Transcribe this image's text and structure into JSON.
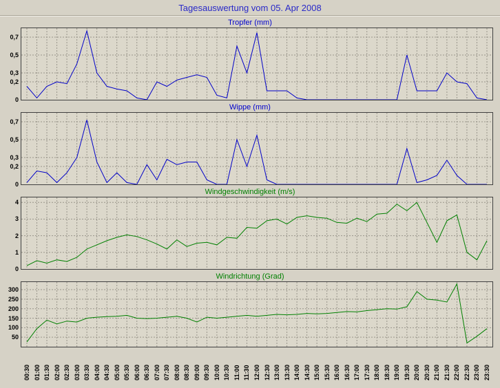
{
  "page": {
    "title": "Tagesauswertung vom 05. Apr 2008"
  },
  "colors": {
    "background": "#d6d2c6",
    "plot_background": "#dcd8cb",
    "grid": "#98948a",
    "page_title": "#2929c8",
    "line_blue": "#0000c8",
    "line_green": "#008000"
  },
  "x_labels": [
    "00:30",
    "01:00",
    "01:30",
    "02:00",
    "02:30",
    "03:00",
    "03:30",
    "04:00",
    "04:30",
    "05:00",
    "05:30",
    "06:00",
    "06:30",
    "07:00",
    "07:30",
    "08:00",
    "08:30",
    "09:00",
    "09:30",
    "10:00",
    "10:30",
    "11:00",
    "11:30",
    "12:00",
    "12:30",
    "13:00",
    "13:30",
    "14:00",
    "14:30",
    "15:00",
    "15:30",
    "16:00",
    "16:30",
    "17:00",
    "17:30",
    "18:00",
    "18:30",
    "19:00",
    "19:30",
    "20:00",
    "20:30",
    "21:00",
    "21:30",
    "22:00",
    "22:30",
    "23:00",
    "23:30"
  ],
  "chart_data": [
    {
      "type": "line",
      "title": "Tropfer (mm)",
      "color": "#0000c8",
      "ymin": 0,
      "ymax": 0.8,
      "yticks": [
        0,
        0.2,
        0.3,
        0.5,
        0.7
      ],
      "ytick_labels": [
        "0",
        "0,2",
        "0,3",
        "0,5",
        "0,7"
      ],
      "grid": true,
      "values": [
        0.15,
        0.02,
        0.15,
        0.2,
        0.18,
        0.4,
        0.77,
        0.3,
        0.15,
        0.12,
        0.1,
        0.02,
        0,
        0.2,
        0.15,
        0.22,
        0.25,
        0.28,
        0.25,
        0.05,
        0.02,
        0.6,
        0.3,
        0.75,
        0.1,
        0.1,
        0.1,
        0.02,
        0,
        0,
        0,
        0,
        0,
        0,
        0,
        0,
        0,
        0,
        0.5,
        0.1,
        0.1,
        0.1,
        0.3,
        0.2,
        0.18,
        0.02,
        0
      ]
    },
    {
      "type": "line",
      "title": "Wippe (mm)",
      "color": "#0000c8",
      "ymin": 0,
      "ymax": 0.8,
      "yticks": [
        0,
        0.2,
        0.3,
        0.5,
        0.7
      ],
      "ytick_labels": [
        "0",
        "0,2",
        "0,3",
        "0,5",
        "0,7"
      ],
      "grid": true,
      "values": [
        0.02,
        0.15,
        0.13,
        0.02,
        0.13,
        0.3,
        0.72,
        0.25,
        0.02,
        0.13,
        0.02,
        0,
        0.22,
        0.05,
        0.28,
        0.22,
        0.25,
        0.25,
        0.05,
        0,
        0,
        0.5,
        0.2,
        0.55,
        0.05,
        0,
        0,
        0,
        0,
        0,
        0,
        0,
        0,
        0,
        0,
        0,
        0,
        0,
        0.4,
        0.02,
        0.05,
        0.1,
        0.27,
        0.1,
        0,
        0,
        0
      ]
    },
    {
      "type": "line",
      "title": "Windgeschwindigkeit (m/s)",
      "color": "#008000",
      "ymin": 0,
      "ymax": 4.3,
      "yticks": [
        0,
        1,
        2,
        3,
        4
      ],
      "ytick_labels": [
        "0",
        "1",
        "2",
        "3",
        "4"
      ],
      "grid": true,
      "values": [
        0.2,
        0.5,
        0.35,
        0.55,
        0.45,
        0.7,
        1.2,
        1.45,
        1.7,
        1.9,
        2.05,
        1.95,
        1.75,
        1.5,
        1.2,
        1.75,
        1.35,
        1.55,
        1.6,
        1.45,
        1.9,
        1.85,
        2.5,
        2.45,
        2.9,
        3.0,
        2.7,
        3.1,
        3.2,
        3.1,
        3.05,
        2.8,
        2.75,
        3.05,
        2.85,
        3.3,
        3.35,
        3.9,
        3.5,
        4.0,
        2.8,
        1.6,
        2.9,
        3.25,
        1.0,
        0.55,
        1.7
      ]
    },
    {
      "type": "line",
      "title": "Windrichtung (Grad)",
      "color": "#008000",
      "ymin": 0,
      "ymax": 340,
      "yticks": [
        50,
        100,
        150,
        200,
        250,
        300
      ],
      "ytick_labels": [
        "50",
        "100",
        "150",
        "200",
        "250",
        "300"
      ],
      "grid": true,
      "values": [
        25,
        95,
        140,
        120,
        135,
        130,
        150,
        155,
        158,
        160,
        165,
        150,
        148,
        150,
        155,
        160,
        150,
        130,
        155,
        150,
        155,
        160,
        165,
        160,
        165,
        170,
        168,
        170,
        175,
        173,
        175,
        180,
        185,
        183,
        190,
        195,
        200,
        198,
        210,
        290,
        250,
        245,
        235,
        330,
        20,
        55,
        95
      ]
    }
  ]
}
